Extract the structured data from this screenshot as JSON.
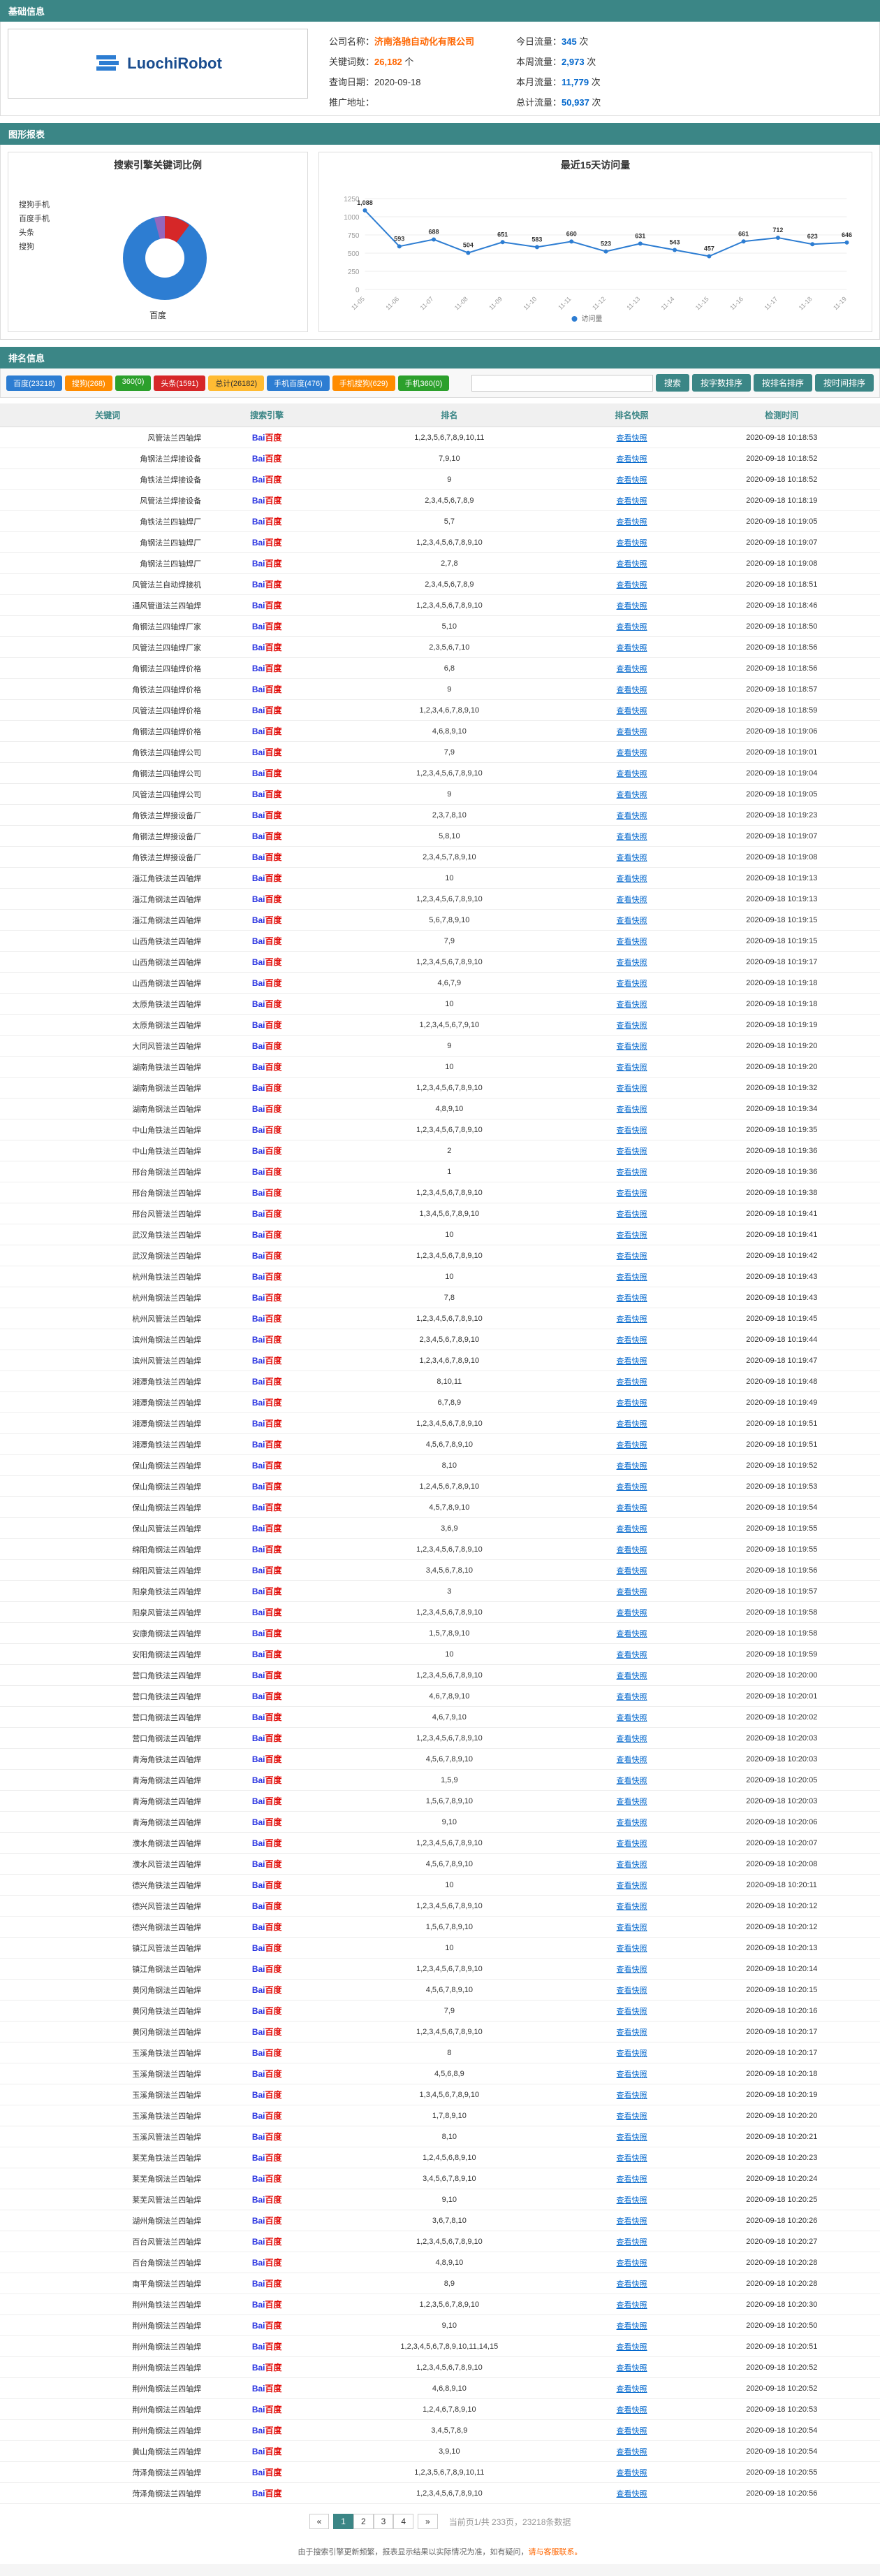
{
  "sections": {
    "basic": "基础信息",
    "charts": "图形报表",
    "ranking": "排名信息"
  },
  "logo_text": "LuochiRobot",
  "company": {
    "name_label": "公司名称：",
    "name": "济南洛驰自动化有限公司",
    "keyword_label": "关键词数：",
    "keyword_count": "26,182",
    "keyword_unit": " 个",
    "date_label": "查询日期：",
    "date": "2020-09-18",
    "promo_label": "推广地址："
  },
  "traffic": {
    "today_label": "今日流量：",
    "today": "345",
    "week_label": "本周流量：",
    "week": "2,973",
    "month_label": "本月流量：",
    "month": "11,779",
    "total_label": "总计流量：",
    "total": "50,937",
    "unit": " 次"
  },
  "pie": {
    "title": "搜索引擎关键词比例",
    "legend": [
      "搜狗手机",
      "百度手机",
      "头条",
      "搜狗"
    ],
    "label_main": "百度",
    "colors": {
      "baidu": "#2d7dd2",
      "sogou": "#d62728",
      "toutiao": "#8c564b",
      "baidu_m": "#9467bd",
      "sogou_m": "#1f77b4"
    }
  },
  "line": {
    "title": "最近15天访问量",
    "x": [
      "11-05",
      "11-06",
      "11-07",
      "11-08",
      "11-09",
      "11-10",
      "11-11",
      "11-12",
      "11-13",
      "11-14",
      "11-15",
      "11-16",
      "11-17",
      "11-18",
      "11-19"
    ],
    "y": [
      1088,
      593,
      688,
      504,
      651,
      583,
      660,
      523,
      631,
      543,
      457,
      661,
      712,
      623,
      646
    ],
    "ymax": 1250,
    "ytick": 250,
    "legend": "访问量",
    "color": "#2d7dd2"
  },
  "filters": [
    {
      "label": "百度(23218)",
      "cls": "blue"
    },
    {
      "label": "搜狗(268)",
      "cls": "orange"
    },
    {
      "label": "360(0)",
      "cls": "green"
    },
    {
      "label": "头条(1591)",
      "cls": "red"
    },
    {
      "label": "总计(26182)",
      "cls": "yellow"
    },
    {
      "label": "手机百度(476)",
      "cls": "blue"
    },
    {
      "label": "手机搜狗(629)",
      "cls": "orange"
    },
    {
      "label": "手机360(0)",
      "cls": "green"
    }
  ],
  "search_btn": "搜索",
  "sort_btns": [
    "按字数排序",
    "按排名排序",
    "按时间排序"
  ],
  "table": {
    "headers": [
      "关键词",
      "搜索引擎",
      "排名",
      "排名快照",
      "检测时间"
    ],
    "snapshot": "查看快照",
    "rows": [
      {
        "kw": "风管法兰四轴焊",
        "rank": "1,2,3,5,6,7,8,9,10,11",
        "time": "2020-09-18 10:18:53"
      },
      {
        "kw": "角钢法兰焊接设备",
        "rank": "7,9,10",
        "time": "2020-09-18 10:18:52"
      },
      {
        "kw": "角铁法兰焊接设备",
        "rank": "9",
        "time": "2020-09-18 10:18:52"
      },
      {
        "kw": "风管法兰焊接设备",
        "rank": "2,3,4,5,6,7,8,9",
        "time": "2020-09-18 10:18:19"
      },
      {
        "kw": "角铁法兰四轴焊厂",
        "rank": "5,7",
        "time": "2020-09-18 10:19:05"
      },
      {
        "kw": "角钢法兰四轴焊厂",
        "rank": "1,2,3,4,5,6,7,8,9,10",
        "time": "2020-09-18 10:19:07"
      },
      {
        "kw": "角钢法兰四轴焊厂",
        "rank": "2,7,8",
        "time": "2020-09-18 10:19:08"
      },
      {
        "kw": "风管法兰自动焊接机",
        "rank": "2,3,4,5,6,7,8,9",
        "time": "2020-09-18 10:18:51"
      },
      {
        "kw": "通风管道法兰四轴焊",
        "rank": "1,2,3,4,5,6,7,8,9,10",
        "time": "2020-09-18 10:18:46"
      },
      {
        "kw": "角钢法兰四轴焊厂家",
        "rank": "5,10",
        "time": "2020-09-18 10:18:50"
      },
      {
        "kw": "风管法兰四轴焊厂家",
        "rank": "2,3,5,6,7,10",
        "time": "2020-09-18 10:18:56"
      },
      {
        "kw": "角钢法兰四轴焊价格",
        "rank": "6,8",
        "time": "2020-09-18 10:18:56"
      },
      {
        "kw": "角铁法兰四轴焊价格",
        "rank": "9",
        "time": "2020-09-18 10:18:57"
      },
      {
        "kw": "风管法兰四轴焊价格",
        "rank": "1,2,3,4,6,7,8,9,10",
        "time": "2020-09-18 10:18:59"
      },
      {
        "kw": "角钢法兰四轴焊价格",
        "rank": "4,6,8,9,10",
        "time": "2020-09-18 10:19:06"
      },
      {
        "kw": "角铁法兰四轴焊公司",
        "rank": "7,9",
        "time": "2020-09-18 10:19:01"
      },
      {
        "kw": "角钢法兰四轴焊公司",
        "rank": "1,2,3,4,5,6,7,8,9,10",
        "time": "2020-09-18 10:19:04"
      },
      {
        "kw": "风管法兰四轴焊公司",
        "rank": "9",
        "time": "2020-09-18 10:19:05"
      },
      {
        "kw": "角铁法兰焊接设备厂",
        "rank": "2,3,7,8,10",
        "time": "2020-09-18 10:19:23"
      },
      {
        "kw": "角钢法兰焊接设备厂",
        "rank": "5,8,10",
        "time": "2020-09-18 10:19:07"
      },
      {
        "kw": "角铁法兰焊接设备厂",
        "rank": "2,3,4,5,7,8,9,10",
        "time": "2020-09-18 10:19:08"
      },
      {
        "kw": "淄江角铁法兰四轴焊",
        "rank": "10",
        "time": "2020-09-18 10:19:13"
      },
      {
        "kw": "淄江角钢法兰四轴焊",
        "rank": "1,2,3,4,5,6,7,8,9,10",
        "time": "2020-09-18 10:19:13"
      },
      {
        "kw": "淄江角钢法兰四轴焊",
        "rank": "5,6,7,8,9,10",
        "time": "2020-09-18 10:19:15"
      },
      {
        "kw": "山西角铁法兰四轴焊",
        "rank": "7,9",
        "time": "2020-09-18 10:19:15"
      },
      {
        "kw": "山西角钢法兰四轴焊",
        "rank": "1,2,3,4,5,6,7,8,9,10",
        "time": "2020-09-18 10:19:17"
      },
      {
        "kw": "山西角钢法兰四轴焊",
        "rank": "4,6,7,9",
        "time": "2020-09-18 10:19:18"
      },
      {
        "kw": "太原角铁法兰四轴焊",
        "rank": "10",
        "time": "2020-09-18 10:19:18"
      },
      {
        "kw": "太原角钢法兰四轴焊",
        "rank": "1,2,3,4,5,6,7,9,10",
        "time": "2020-09-18 10:19:19"
      },
      {
        "kw": "大同风管法兰四轴焊",
        "rank": "9",
        "time": "2020-09-18 10:19:20"
      },
      {
        "kw": "湖南角铁法兰四轴焊",
        "rank": "10",
        "time": "2020-09-18 10:19:20"
      },
      {
        "kw": "湖南角钢法兰四轴焊",
        "rank": "1,2,3,4,5,6,7,8,9,10",
        "time": "2020-09-18 10:19:32"
      },
      {
        "kw": "湖南角钢法兰四轴焊",
        "rank": "4,8,9,10",
        "time": "2020-09-18 10:19:34"
      },
      {
        "kw": "中山角铁法兰四轴焊",
        "rank": "1,2,3,4,5,6,7,8,9,10",
        "time": "2020-09-18 10:19:35"
      },
      {
        "kw": "中山角铁法兰四轴焊",
        "rank": "2",
        "time": "2020-09-18 10:19:36"
      },
      {
        "kw": "邢台角钢法兰四轴焊",
        "rank": "1",
        "time": "2020-09-18 10:19:36"
      },
      {
        "kw": "邢台角钢法兰四轴焊",
        "rank": "1,2,3,4,5,6,7,8,9,10",
        "time": "2020-09-18 10:19:38"
      },
      {
        "kw": "邢台风管法兰四轴焊",
        "rank": "1,3,4,5,6,7,8,9,10",
        "time": "2020-09-18 10:19:41"
      },
      {
        "kw": "武汉角铁法兰四轴焊",
        "rank": "10",
        "time": "2020-09-18 10:19:41"
      },
      {
        "kw": "武汉角钢法兰四轴焊",
        "rank": "1,2,3,4,5,6,7,8,9,10",
        "time": "2020-09-18 10:19:42"
      },
      {
        "kw": "杭州角铁法兰四轴焊",
        "rank": "10",
        "time": "2020-09-18 10:19:43"
      },
      {
        "kw": "杭州角钢法兰四轴焊",
        "rank": "7,8",
        "time": "2020-09-18 10:19:43"
      },
      {
        "kw": "杭州风管法兰四轴焊",
        "rank": "1,2,3,4,5,6,7,8,9,10",
        "time": "2020-09-18 10:19:45"
      },
      {
        "kw": "滨州角钢法兰四轴焊",
        "rank": "2,3,4,5,6,7,8,9,10",
        "time": "2020-09-18 10:19:44"
      },
      {
        "kw": "滨州风管法兰四轴焊",
        "rank": "1,2,3,4,6,7,8,9,10",
        "time": "2020-09-18 10:19:47"
      },
      {
        "kw": "湘潭角铁法兰四轴焊",
        "rank": "8,10,11",
        "time": "2020-09-18 10:19:48"
      },
      {
        "kw": "湘潭角钢法兰四轴焊",
        "rank": "6,7,8,9",
        "time": "2020-09-18 10:19:49"
      },
      {
        "kw": "湘潭角钢法兰四轴焊",
        "rank": "1,2,3,4,5,6,7,8,9,10",
        "time": "2020-09-18 10:19:51"
      },
      {
        "kw": "湘潭角铁法兰四轴焊",
        "rank": "4,5,6,7,8,9,10",
        "time": "2020-09-18 10:19:51"
      },
      {
        "kw": "保山角钢法兰四轴焊",
        "rank": "8,10",
        "time": "2020-09-18 10:19:52"
      },
      {
        "kw": "保山角钢法兰四轴焊",
        "rank": "1,2,4,5,6,7,8,9,10",
        "time": "2020-09-18 10:19:53"
      },
      {
        "kw": "保山角钢法兰四轴焊",
        "rank": "4,5,7,8,9,10",
        "time": "2020-09-18 10:19:54"
      },
      {
        "kw": "保山风管法兰四轴焊",
        "rank": "3,6,9",
        "time": "2020-09-18 10:19:55"
      },
      {
        "kw": "绵阳角钢法兰四轴焊",
        "rank": "1,2,3,4,5,6,7,8,9,10",
        "time": "2020-09-18 10:19:55"
      },
      {
        "kw": "绵阳风管法兰四轴焊",
        "rank": "3,4,5,6,7,8,10",
        "time": "2020-09-18 10:19:56"
      },
      {
        "kw": "阳泉角铁法兰四轴焊",
        "rank": "3",
        "time": "2020-09-18 10:19:57"
      },
      {
        "kw": "阳泉风管法兰四轴焊",
        "rank": "1,2,3,4,5,6,7,8,9,10",
        "time": "2020-09-18 10:19:58"
      },
      {
        "kw": "安康角钢法兰四轴焊",
        "rank": "1,5,7,8,9,10",
        "time": "2020-09-18 10:19:58"
      },
      {
        "kw": "安阳角钢法兰四轴焊",
        "rank": "10",
        "time": "2020-09-18 10:19:59"
      },
      {
        "kw": "营口角铁法兰四轴焊",
        "rank": "1,2,3,4,5,6,7,8,9,10",
        "time": "2020-09-18 10:20:00"
      },
      {
        "kw": "营口角铁法兰四轴焊",
        "rank": "4,6,7,8,9,10",
        "time": "2020-09-18 10:20:01"
      },
      {
        "kw": "营口角钢法兰四轴焊",
        "rank": "4,6,7,9,10",
        "time": "2020-09-18 10:20:02"
      },
      {
        "kw": "营口角钢法兰四轴焊",
        "rank": "1,2,3,4,5,6,7,8,9,10",
        "time": "2020-09-18 10:20:03"
      },
      {
        "kw": "青海角铁法兰四轴焊",
        "rank": "4,5,6,7,8,9,10",
        "time": "2020-09-18 10:20:03"
      },
      {
        "kw": "青海角钢法兰四轴焊",
        "rank": "1,5,9",
        "time": "2020-09-18 10:20:05"
      },
      {
        "kw": "青海角钢法兰四轴焊",
        "rank": "1,5,6,7,8,9,10",
        "time": "2020-09-18 10:20:03"
      },
      {
        "kw": "青海角钢法兰四轴焊",
        "rank": "9,10",
        "time": "2020-09-18 10:20:06"
      },
      {
        "kw": "濮水角钢法兰四轴焊",
        "rank": "1,2,3,4,5,6,7,8,9,10",
        "time": "2020-09-18 10:20:07"
      },
      {
        "kw": "濮水风管法兰四轴焊",
        "rank": "4,5,6,7,8,9,10",
        "time": "2020-09-18 10:20:08"
      },
      {
        "kw": "德兴角铁法兰四轴焊",
        "rank": "10",
        "time": "2020-09-18 10:20:11"
      },
      {
        "kw": "德兴风管法兰四轴焊",
        "rank": "1,2,3,4,5,6,7,8,9,10",
        "time": "2020-09-18 10:20:12"
      },
      {
        "kw": "德兴角钢法兰四轴焊",
        "rank": "1,5,6,7,8,9,10",
        "time": "2020-09-18 10:20:12"
      },
      {
        "kw": "镇江风管法兰四轴焊",
        "rank": "10",
        "time": "2020-09-18 10:20:13"
      },
      {
        "kw": "镇江角钢法兰四轴焊",
        "rank": "1,2,3,4,5,6,7,8,9,10",
        "time": "2020-09-18 10:20:14"
      },
      {
        "kw": "黄冈角钢法兰四轴焊",
        "rank": "4,5,6,7,8,9,10",
        "time": "2020-09-18 10:20:15"
      },
      {
        "kw": "黄冈角铁法兰四轴焊",
        "rank": "7,9",
        "time": "2020-09-18 10:20:16"
      },
      {
        "kw": "黄冈角钢法兰四轴焊",
        "rank": "1,2,3,4,5,6,7,8,9,10",
        "time": "2020-09-18 10:20:17"
      },
      {
        "kw": "玉溪角铁法兰四轴焊",
        "rank": "8",
        "time": "2020-09-18 10:20:17"
      },
      {
        "kw": "玉溪角钢法兰四轴焊",
        "rank": "4,5,6,8,9",
        "time": "2020-09-18 10:20:18"
      },
      {
        "kw": "玉溪角钢法兰四轴焊",
        "rank": "1,3,4,5,6,7,8,9,10",
        "time": "2020-09-18 10:20:19"
      },
      {
        "kw": "玉溪角铁法兰四轴焊",
        "rank": "1,7,8,9,10",
        "time": "2020-09-18 10:20:20"
      },
      {
        "kw": "玉溪风管法兰四轴焊",
        "rank": "8,10",
        "time": "2020-09-18 10:20:21"
      },
      {
        "kw": "莱芜角铁法兰四轴焊",
        "rank": "1,2,4,5,6,8,9,10",
        "time": "2020-09-18 10:20:23"
      },
      {
        "kw": "莱芜角钢法兰四轴焊",
        "rank": "3,4,5,6,7,8,9,10",
        "time": "2020-09-18 10:20:24"
      },
      {
        "kw": "莱芜风管法兰四轴焊",
        "rank": "9,10",
        "time": "2020-09-18 10:20:25"
      },
      {
        "kw": "湖州角钢法兰四轴焊",
        "rank": "3,6,7,8,10",
        "time": "2020-09-18 10:20:26"
      },
      {
        "kw": "百台风管法兰四轴焊",
        "rank": "1,2,3,4,5,6,7,8,9,10",
        "time": "2020-09-18 10:20:27"
      },
      {
        "kw": "百台角钢法兰四轴焊",
        "rank": "4,8,9,10",
        "time": "2020-09-18 10:20:28"
      },
      {
        "kw": "南平角钢法兰四轴焊",
        "rank": "8,9",
        "time": "2020-09-18 10:20:28"
      },
      {
        "kw": "荆州角铁法兰四轴焊",
        "rank": "1,2,3,5,6,7,8,9,10",
        "time": "2020-09-18 10:20:30"
      },
      {
        "kw": "荆州角钢法兰四轴焊",
        "rank": "9,10",
        "time": "2020-09-18 10:20:50"
      },
      {
        "kw": "荆州角钢法兰四轴焊",
        "rank": "1,2,3,4,5,6,7,8,9,10,11,14,15",
        "time": "2020-09-18 10:20:51"
      },
      {
        "kw": "荆州角钢法兰四轴焊",
        "rank": "1,2,3,4,5,6,7,8,9,10",
        "time": "2020-09-18 10:20:52"
      },
      {
        "kw": "荆州角钢法兰四轴焊",
        "rank": "4,6,8,9,10",
        "time": "2020-09-18 10:20:52"
      },
      {
        "kw": "荆州角钢法兰四轴焊",
        "rank": "1,2,4,6,7,8,9,10",
        "time": "2020-09-18 10:20:53"
      },
      {
        "kw": "荆州角钢法兰四轴焊",
        "rank": "3,4,5,7,8,9",
        "time": "2020-09-18 10:20:54"
      },
      {
        "kw": "黄山角钢法兰四轴焊",
        "rank": "3,9,10",
        "time": "2020-09-18 10:20:54"
      },
      {
        "kw": "菏泽角钢法兰四轴焊",
        "rank": "1,2,3,5,6,7,8,9,10,11",
        "time": "2020-09-18 10:20:55"
      },
      {
        "kw": "菏泽角钢法兰四轴焊",
        "rank": "1,2,3,4,5,6,7,8,9,10",
        "time": "2020-09-18 10:20:56"
      }
    ]
  },
  "pagination": {
    "prev": "«",
    "pages": [
      "1",
      "2",
      "3",
      "4"
    ],
    "next": "»",
    "info": "当前页1/共 233页，23218条数据"
  },
  "footer": {
    "pre": "由于搜索引擎更新频繁，报表显示结果以实际情况为准，如有疑问，",
    "link": "请与客服联系。"
  }
}
